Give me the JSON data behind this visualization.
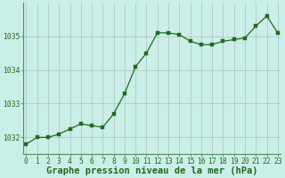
{
  "x": [
    0,
    1,
    2,
    3,
    4,
    5,
    6,
    7,
    8,
    9,
    10,
    11,
    12,
    13,
    14,
    15,
    16,
    17,
    18,
    19,
    20,
    21,
    22,
    23
  ],
  "y": [
    1031.8,
    1032.0,
    1032.0,
    1032.1,
    1032.25,
    1032.4,
    1032.35,
    1032.3,
    1032.7,
    1033.3,
    1034.1,
    1034.5,
    1035.1,
    1035.1,
    1035.05,
    1034.85,
    1034.75,
    1034.75,
    1034.85,
    1034.9,
    1034.95,
    1035.3,
    1035.6,
    1035.1
  ],
  "line_color": "#1e6b1e",
  "marker_color": "#1e6b1e",
  "bg_color": "#cceee8",
  "grid_color": "#b0c8c8",
  "title": "Graphe pression niveau de la mer (hPa)",
  "ylim_min": 1031.5,
  "ylim_max": 1036.0,
  "yticks": [
    1032,
    1033,
    1034,
    1035
  ],
  "xticks": [
    0,
    1,
    2,
    3,
    4,
    5,
    6,
    7,
    8,
    9,
    10,
    11,
    12,
    13,
    14,
    15,
    16,
    17,
    18,
    19,
    20,
    21,
    22,
    23
  ],
  "text_color": "#1e6b1e",
  "title_fontsize": 7.5,
  "tick_fontsize": 5.8,
  "border_color": "#5a8a5a"
}
